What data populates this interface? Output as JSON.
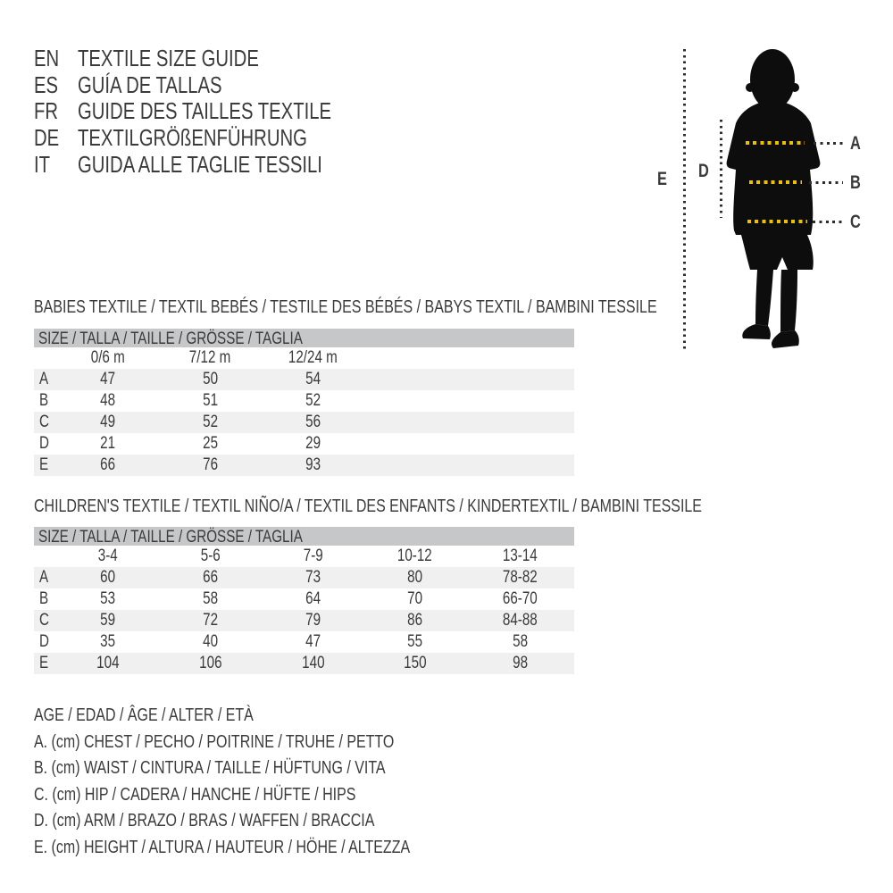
{
  "colors": {
    "text": "#3b3b3c",
    "table_header_bar": "#c6c7c9",
    "table_row_stripe": "#f0f0f1",
    "measure_dot_yellow": "#ecc200",
    "measure_dot_black": "#2c2c2c",
    "silhouette": "#0d0d0d"
  },
  "languages": {
    "items": [
      {
        "code": "EN",
        "label": "TEXTILE SIZE GUIDE"
      },
      {
        "code": "ES",
        "label": "GUÍA DE TALLAS"
      },
      {
        "code": "FR",
        "label": "GUIDE DES TAILLES TEXTILE"
      },
      {
        "code": "DE",
        "label": "TEXTILGRÖßENFÜHRUNG"
      },
      {
        "code": "IT",
        "label": "GUIDA ALLE TAGLIE TESSILI"
      }
    ]
  },
  "figure": {
    "labels": {
      "A": "A",
      "B": "B",
      "C": "C",
      "D": "D",
      "E": "E"
    }
  },
  "babies_table": {
    "title": "BABIES TEXTILE / TEXTIL BEBÉS / TESTILE DES BÉBÉS / BABYS TEXTIL / BAMBINI TESSILE",
    "header": "SIZE / TALLA / TAILLE / GRÖSSE / TAGLIA",
    "columns": [
      "0/6 m",
      "7/12 m",
      "12/24 m"
    ],
    "rows": [
      {
        "label": "A",
        "values": [
          "47",
          "50",
          "54"
        ]
      },
      {
        "label": "B",
        "values": [
          "48",
          "51",
          "52"
        ]
      },
      {
        "label": "C",
        "values": [
          "49",
          "52",
          "56"
        ]
      },
      {
        "label": "D",
        "values": [
          "21",
          "25",
          "29"
        ]
      },
      {
        "label": "E",
        "values": [
          "66",
          "76",
          "93"
        ]
      }
    ]
  },
  "children_table": {
    "title": "CHILDREN'S TEXTILE / TEXTIL NIÑO/A / TEXTIL DES ENFANTS / KINDERTEXTIL / BAMBINI TESSILE",
    "header": "SIZE / TALLA / TAILLE / GRÖSSE / TAGLIA",
    "columns": [
      "3-4",
      "5-6",
      "7-9",
      "10-12",
      "13-14"
    ],
    "rows": [
      {
        "label": "A",
        "values": [
          "60",
          "66",
          "73",
          "80",
          "78-82"
        ]
      },
      {
        "label": "B",
        "values": [
          "53",
          "58",
          "64",
          "70",
          "66-70"
        ]
      },
      {
        "label": "C",
        "values": [
          "59",
          "72",
          "79",
          "86",
          "84-88"
        ]
      },
      {
        "label": "D",
        "values": [
          "35",
          "40",
          "47",
          "55",
          "58"
        ]
      },
      {
        "label": "E",
        "values": [
          "104",
          "106",
          "140",
          "150",
          "98"
        ]
      }
    ]
  },
  "legend": {
    "lines": [
      "AGE / EDAD / ÂGE / ALTER / ETÀ",
      "A. (cm) CHEST / PECHO / POITRINE / TRUHE / PETTO",
      "B. (cm) WAIST / CINTURA / TAILLE / HÜFTUNG / VITA",
      "C. (cm) HIP / CADERA / HANCHE / HÜFTE / HIPS",
      "D. (cm) ARM / BRAZO / BRAS / WAFFEN / BRACCIA",
      "E. (cm) HEIGHT / ALTURA / HAUTEUR / HÖHE / ALTEZZA"
    ]
  }
}
